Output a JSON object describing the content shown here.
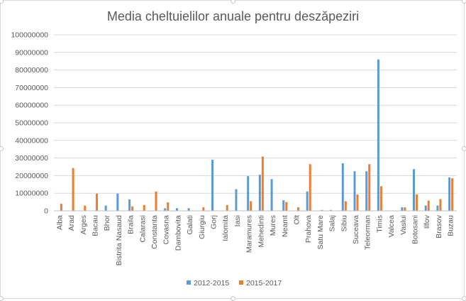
{
  "chart_data": {
    "type": "bar",
    "title": "Media cheltuielilor anuale pentru deszăpeziri",
    "xlabel": "",
    "ylabel": "",
    "ylim": [
      0,
      100000000
    ],
    "yticks": [
      "0",
      "10000000",
      "20000000",
      "30000000",
      "40000000",
      "50000000",
      "60000000",
      "70000000",
      "80000000",
      "90000000",
      "100000000"
    ],
    "grid": true,
    "legend_position": "bottom",
    "categories": [
      "Alba",
      "Arad",
      "Arges",
      "Bacau",
      "Bhor",
      "Bistrita Nasaud",
      "Braila",
      "Calarasi",
      "Constanta",
      "Covasna",
      "Dambovita",
      "Galati",
      "Giurgiu",
      "Gorj",
      "Ialomita",
      "Iasi",
      "Maramures",
      "Mehedinti",
      "Mures",
      "Neamt",
      "Olt",
      "Prahova",
      "Satu Mare",
      "Salaj",
      "Sibiu",
      "Suceava",
      "Teleorman",
      "Timis",
      "Valcea",
      "Vaslui",
      "Botosani",
      "Ilfov",
      "Brasov",
      "Buzau"
    ],
    "series": [
      {
        "name": "2012-2015",
        "color": "#5b9bd5",
        "values": [
          0,
          0,
          0,
          0,
          3000000,
          9800000,
          6500000,
          0,
          0,
          1500000,
          1500000,
          1500000,
          0,
          29000000,
          0,
          12300000,
          19700000,
          20500000,
          18000000,
          6000000,
          0,
          11000000,
          0,
          500000,
          27000000,
          22500000,
          22500000,
          86000000,
          0,
          2000000,
          23700000,
          3000000,
          3000000,
          19000000
        ]
      },
      {
        "name": "2015-2017",
        "color": "#ed7d31",
        "values": [
          4000000,
          24300000,
          3000000,
          9800000,
          0,
          0,
          2500000,
          3300000,
          11000000,
          4800000,
          0,
          0,
          2000000,
          0,
          3300000,
          0,
          5500000,
          30800000,
          0,
          5000000,
          2000000,
          26500000,
          500000,
          0,
          5500000,
          9300000,
          26500000,
          14000000,
          0,
          2000000,
          9300000,
          5800000,
          6700000,
          18500000
        ]
      }
    ]
  }
}
